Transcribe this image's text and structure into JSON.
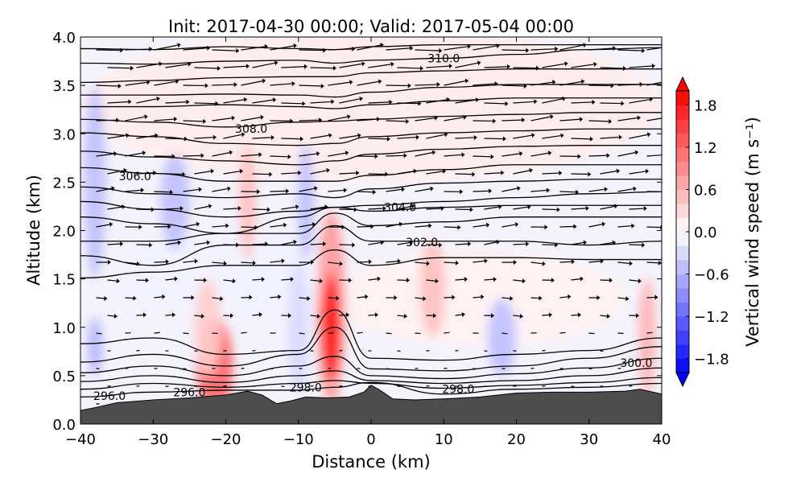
{
  "chart_data": {
    "type": "heatmap",
    "title": "Init: 2017-04-30 00:00; Valid: 2017-05-04 00:00",
    "xlabel": "Distance (km)",
    "ylabel": "Altitude (km)",
    "xlim": [
      -40,
      40
    ],
    "ylim": [
      0.0,
      4.0
    ],
    "xticks": [
      "−40",
      "−30",
      "−20",
      "−10",
      "0",
      "10",
      "20",
      "30",
      "40"
    ],
    "xtick_values": [
      -40,
      -30,
      -20,
      -10,
      0,
      10,
      20,
      30,
      40
    ],
    "yticks": [
      "0.0",
      "0.5",
      "1.0",
      "1.5",
      "2.0",
      "2.5",
      "3.0",
      "3.5",
      "4.0"
    ],
    "ytick_values": [
      0,
      0.5,
      1,
      1.5,
      2,
      2.5,
      3,
      3.5,
      4
    ],
    "colorbar": {
      "label": "Vertical wind speed (m s⁻¹)",
      "range": [
        -2.0,
        2.0
      ],
      "step": 0.2,
      "extend": "both",
      "ticks": [
        "1.8",
        "1.2",
        "0.6",
        "0.0",
        "−0.6",
        "−1.2",
        "−1.8"
      ],
      "tick_values": [
        1.8,
        1.2,
        0.6,
        0.0,
        -0.6,
        -1.2,
        -1.8
      ],
      "low_color": "#0000ff",
      "mid_color": "#ffffff",
      "high_color": "#ff0000"
    },
    "terrain": {
      "color": "#4d4d4d",
      "x": [
        -40,
        -38,
        -35,
        -30,
        -25,
        -20,
        -17,
        -15,
        -13,
        -11,
        -9,
        -6,
        -3,
        -1,
        0,
        1,
        3,
        6,
        10,
        15,
        20,
        25,
        30,
        35,
        37,
        40
      ],
      "alt": [
        0.14,
        0.17,
        0.22,
        0.25,
        0.27,
        0.3,
        0.34,
        0.3,
        0.21,
        0.24,
        0.28,
        0.27,
        0.28,
        0.33,
        0.4,
        0.36,
        0.26,
        0.25,
        0.26,
        0.28,
        0.32,
        0.33,
        0.33,
        0.34,
        0.36,
        0.31
      ]
    },
    "theta_contour_x": [
      -40,
      -30,
      -20,
      -10,
      -5,
      0,
      10,
      20,
      30,
      40
    ],
    "theta_contours": [
      {
        "alt": [
          3.88,
          3.87,
          3.9,
          3.88,
          3.87,
          3.9,
          3.92,
          3.92,
          3.92,
          3.92
        ]
      },
      {
        "alt": [
          3.73,
          3.72,
          3.75,
          3.76,
          3.73,
          3.76,
          3.78,
          3.82,
          3.87,
          3.89
        ]
      },
      {
        "alt": [
          3.53,
          3.55,
          3.58,
          3.59,
          3.59,
          3.63,
          3.65,
          3.67,
          3.67,
          3.67
        ]
      },
      {
        "alt": [
          3.4,
          3.4,
          3.41,
          3.4,
          3.38,
          3.43,
          3.48,
          3.51,
          3.51,
          3.51
        ]
      },
      {
        "alt": [
          3.28,
          3.28,
          3.3,
          3.28,
          3.26,
          3.3,
          3.34,
          3.37,
          3.37,
          3.37
        ]
      },
      {
        "alt": [
          3.15,
          3.12,
          3.07,
          3.12,
          3.13,
          3.15,
          3.18,
          3.2,
          3.22,
          3.22
        ]
      },
      {
        "alt": [
          3.01,
          2.97,
          2.9,
          2.88,
          2.9,
          2.97,
          3.01,
          3.03,
          3.05,
          3.05
        ]
      },
      {
        "alt": [
          2.82,
          2.76,
          2.72,
          2.68,
          2.72,
          2.79,
          2.84,
          2.87,
          2.88,
          2.88
        ]
      },
      {
        "alt": [
          2.65,
          2.59,
          2.51,
          2.51,
          2.51,
          2.57,
          2.63,
          2.68,
          2.68,
          2.68
        ]
      },
      {
        "alt": [
          2.45,
          2.38,
          2.34,
          2.38,
          2.34,
          2.43,
          2.49,
          2.51,
          2.53,
          2.53
        ]
      },
      {
        "alt": [
          2.3,
          2.22,
          2.14,
          2.2,
          2.24,
          2.26,
          2.3,
          2.34,
          2.38,
          2.4
        ]
      },
      {
        "alt": [
          2.14,
          2.07,
          1.97,
          2.14,
          2.24,
          2.2,
          2.24,
          2.26,
          2.26,
          2.26
        ]
      },
      {
        "alt": [
          1.89,
          1.89,
          1.97,
          1.97,
          2.18,
          2.05,
          2.09,
          2.14,
          2.14,
          2.14
        ]
      },
      {
        "alt": [
          1.74,
          1.64,
          1.85,
          1.85,
          2.05,
          1.89,
          1.89,
          1.89,
          1.85,
          1.89
        ]
      },
      {
        "alt": [
          1.51,
          1.57,
          1.64,
          1.64,
          1.8,
          1.64,
          1.72,
          1.72,
          1.7,
          1.7
        ]
      },
      {
        "alt": [
          0.83,
          0.89,
          0.72,
          0.76,
          1.18,
          0.68,
          0.66,
          0.72,
          0.76,
          0.89
        ]
      },
      {
        "alt": [
          0.64,
          0.72,
          0.6,
          0.72,
          1.0,
          0.57,
          0.55,
          0.6,
          0.68,
          0.8
        ]
      },
      {
        "alt": [
          0.53,
          0.6,
          0.5,
          0.6,
          0.7,
          0.5,
          0.47,
          0.52,
          0.58,
          0.68
        ]
      },
      {
        "alt": [
          0.44,
          0.5,
          0.43,
          0.5,
          0.55,
          0.45,
          0.42,
          0.45,
          0.5,
          0.58
        ]
      },
      {
        "alt": [
          0.36,
          0.42,
          0.38,
          0.42,
          0.45,
          0.42,
          0.37,
          0.4,
          0.43,
          0.48
        ]
      },
      {
        "alt": [
          0.28,
          0.33,
          0.35,
          0.35,
          0.38,
          0.43,
          0.31,
          0.36,
          0.38,
          0.42
        ]
      }
    ],
    "contour_labels": [
      {
        "text": "310.0",
        "x": 10,
        "alt": 3.78
      },
      {
        "text": "308.0",
        "x": -16.5,
        "alt": 3.05
      },
      {
        "text": "306.0",
        "x": -32.5,
        "alt": 2.56
      },
      {
        "text": "304.0",
        "x": 4,
        "alt": 2.24
      },
      {
        "text": "302.0",
        "x": 7,
        "alt": 1.88
      },
      {
        "text": "300.0",
        "x": 36.5,
        "alt": 0.63
      },
      {
        "text": "298.0",
        "x": -9,
        "alt": 0.38
      },
      {
        "text": "298.0",
        "x": 12,
        "alt": 0.36
      },
      {
        "text": "296.0",
        "x": -36,
        "alt": 0.29
      },
      {
        "text": "296.0",
        "x": -25,
        "alt": 0.33
      }
    ],
    "w_features": [
      {
        "x": -5.5,
        "alt": 1.0,
        "rx": 1.2,
        "ry": 0.55,
        "w": 2.0
      },
      {
        "x": -5.5,
        "alt": 1.2,
        "rx": 2.0,
        "ry": 1.0,
        "w": 0.8
      },
      {
        "x": -21.5,
        "alt": 0.6,
        "rx": 2.5,
        "ry": 0.5,
        "w": 1.2
      },
      {
        "x": -22.5,
        "alt": 1.0,
        "rx": 1.8,
        "ry": 0.5,
        "w": 0.4
      },
      {
        "x": -17,
        "alt": 2.3,
        "rx": 1.2,
        "ry": 0.6,
        "w": 0.5
      },
      {
        "x": 8.5,
        "alt": 1.4,
        "rx": 1.8,
        "ry": 0.5,
        "w": 0.5
      },
      {
        "x": 38,
        "alt": 0.9,
        "rx": 1.2,
        "ry": 0.6,
        "w": 0.6
      },
      {
        "x": -38,
        "alt": 2.5,
        "rx": 1.5,
        "ry": 1.0,
        "w": -0.5
      },
      {
        "x": -27,
        "alt": 2.3,
        "rx": 2.0,
        "ry": 0.5,
        "w": -0.5
      },
      {
        "x": -9,
        "alt": 2.3,
        "rx": 1.2,
        "ry": 0.6,
        "w": -0.5
      },
      {
        "x": -10,
        "alt": 1.0,
        "rx": 1.5,
        "ry": 0.7,
        "w": -0.3
      },
      {
        "x": 18,
        "alt": 0.9,
        "rx": 2.0,
        "ry": 0.4,
        "w": -0.5
      },
      {
        "x": -38,
        "alt": 0.8,
        "rx": 1.0,
        "ry": 0.3,
        "w": -0.6
      },
      {
        "x": 0,
        "alt": 3.3,
        "rx": 40,
        "ry": 0.8,
        "w": 0.15
      },
      {
        "x": 15,
        "alt": 1.3,
        "rx": 20,
        "ry": 0.5,
        "w": 0.1
      },
      {
        "x": -20,
        "alt": 1.6,
        "rx": 15,
        "ry": 0.5,
        "w": -0.1
      }
    ]
  }
}
